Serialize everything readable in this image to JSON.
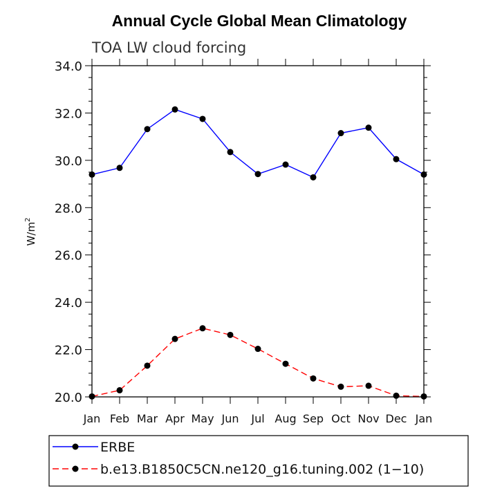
{
  "chart_data": {
    "type": "line",
    "title": "Annual Cycle Global Mean Climatology",
    "subtitle": "TOA LW cloud forcing",
    "ylabel": "W/m",
    "ylabel_sup": "2",
    "xlabel": "",
    "categories": [
      "Jan",
      "Feb",
      "Mar",
      "Apr",
      "May",
      "Jun",
      "Jul",
      "Aug",
      "Sep",
      "Oct",
      "Nov",
      "Dec",
      "Jan"
    ],
    "ylim": [
      20.0,
      34.0
    ],
    "yticks": [
      "20.0",
      "22.0",
      "24.0",
      "26.0",
      "28.0",
      "30.0",
      "32.0",
      "34.0"
    ],
    "grid": false,
    "legend_position": "bottom",
    "series": [
      {
        "name": "ERBE",
        "color": "#0000ff",
        "dash": "solid",
        "marker": "circle",
        "values": [
          29.4,
          29.68,
          31.32,
          32.15,
          31.75,
          30.35,
          29.42,
          29.82,
          29.28,
          31.15,
          31.38,
          30.05,
          29.4
        ]
      },
      {
        "name": "b.e13.B1850C5CN.ne120_g16.tuning.002 (1−10)",
        "color": "#ff0000",
        "dash": "dashed",
        "marker": "circle",
        "values": [
          20.02,
          20.28,
          21.32,
          22.45,
          22.9,
          22.62,
          22.03,
          21.4,
          20.78,
          20.43,
          20.47,
          20.05,
          20.02
        ]
      }
    ]
  }
}
